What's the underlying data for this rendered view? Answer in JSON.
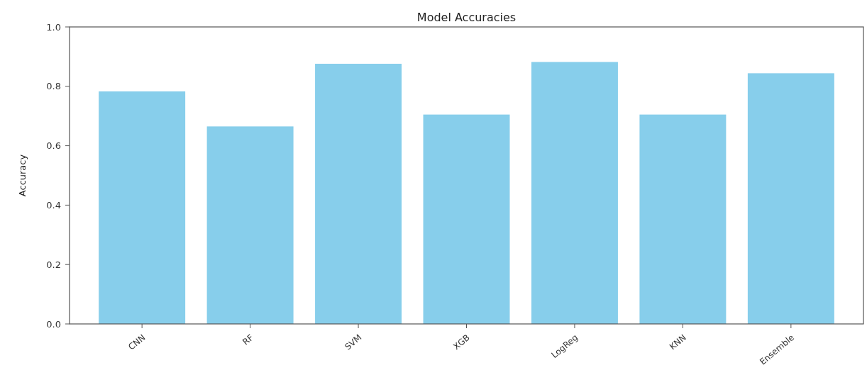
{
  "chart_data": {
    "type": "bar",
    "title": "Model Accuracies",
    "ylabel": "Accuracy",
    "categories": [
      "CNN",
      "RF",
      "SVM",
      "XGB",
      "LogReg",
      "KNN",
      "Ensemble"
    ],
    "values": [
      0.783,
      0.665,
      0.876,
      0.705,
      0.882,
      0.705,
      0.844
    ],
    "color": "#87ceeb",
    "ylim": [
      0,
      1
    ],
    "yticks": [
      "0.0",
      0.2,
      0.4,
      0.6,
      0.8,
      "1.0"
    ],
    "grid": false
  }
}
